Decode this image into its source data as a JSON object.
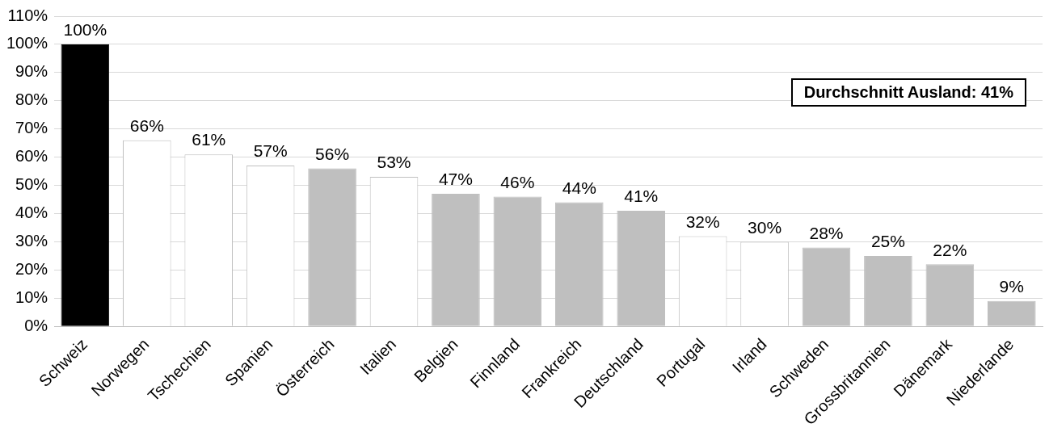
{
  "chart_data": {
    "type": "bar",
    "categories": [
      "Schweiz",
      "Norwegen",
      "Tschechien",
      "Spanien",
      "Österreich",
      "Italien",
      "Belgien",
      "Finnland",
      "Frankreich",
      "Deutschland",
      "Portugal",
      "Irland",
      "Schweden",
      "Grossbritannien",
      "Dänemark",
      "Niederlande"
    ],
    "values": [
      100,
      66,
      61,
      57,
      56,
      53,
      47,
      46,
      44,
      41,
      32,
      30,
      28,
      25,
      22,
      9
    ],
    "colors": [
      "#000000",
      "#ffffff",
      "#ffffff",
      "#ffffff",
      "#bfbfbf",
      "#ffffff",
      "#bfbfbf",
      "#bfbfbf",
      "#bfbfbf",
      "#bfbfbf",
      "#ffffff",
      "#ffffff",
      "#bfbfbf",
      "#bfbfbf",
      "#bfbfbf",
      "#bfbfbf"
    ],
    "value_labels": [
      "100%",
      "66%",
      "61%",
      "57%",
      "56%",
      "53%",
      "47%",
      "46%",
      "44%",
      "41%",
      "32%",
      "30%",
      "28%",
      "25%",
      "22%",
      "9%"
    ],
    "ylim": [
      0,
      110
    ],
    "yticks": [
      {
        "value": 0,
        "label": "0%"
      },
      {
        "value": 10,
        "label": "10%"
      },
      {
        "value": 20,
        "label": "20%"
      },
      {
        "value": 30,
        "label": "30%"
      },
      {
        "value": 40,
        "label": "40%"
      },
      {
        "value": 50,
        "label": "50%"
      },
      {
        "value": 60,
        "label": "60%"
      },
      {
        "value": 70,
        "label": "70%"
      },
      {
        "value": 80,
        "label": "80%"
      },
      {
        "value": 90,
        "label": "90%"
      },
      {
        "value": 100,
        "label": "100%"
      },
      {
        "value": 110,
        "label": "110%"
      }
    ],
    "grid": "y",
    "legend": false,
    "annotations": [
      "Durchschnitt Ausland: 41%"
    ]
  }
}
